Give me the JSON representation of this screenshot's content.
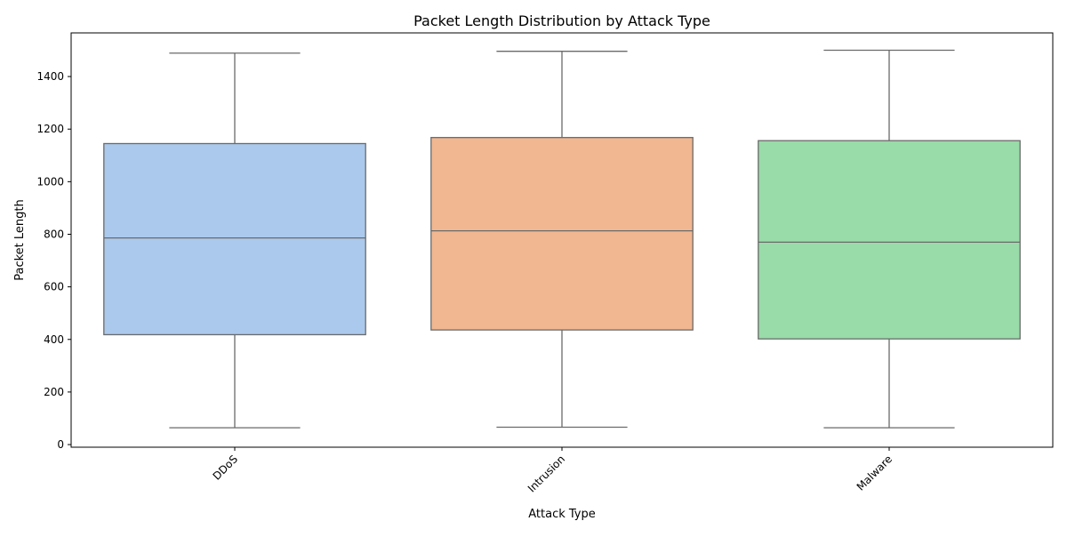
{
  "chart_data": {
    "type": "box",
    "title": "Packet Length Distribution by Attack Type",
    "xlabel": "Attack Type",
    "ylabel": "Packet Length",
    "categories": [
      "DDoS",
      "Intrusion",
      "Malware"
    ],
    "boxes": [
      {
        "category": "DDoS",
        "min": 64,
        "q1": 418,
        "median": 786,
        "q3": 1145,
        "max": 1489,
        "color": "#abc9ec"
      },
      {
        "category": "Intrusion",
        "min": 66,
        "q1": 436,
        "median": 813,
        "q3": 1168,
        "max": 1496,
        "color": "#f1b791"
      },
      {
        "category": "Malware",
        "min": 64,
        "q1": 402,
        "median": 770,
        "q3": 1156,
        "max": 1500,
        "color": "#99dba9"
      }
    ],
    "yticks": [
      0,
      200,
      400,
      600,
      800,
      1000,
      1200,
      1400
    ],
    "ylim": [
      -10,
      1566
    ],
    "grid": false,
    "legend": "none",
    "x_tick_rotation": 45
  }
}
